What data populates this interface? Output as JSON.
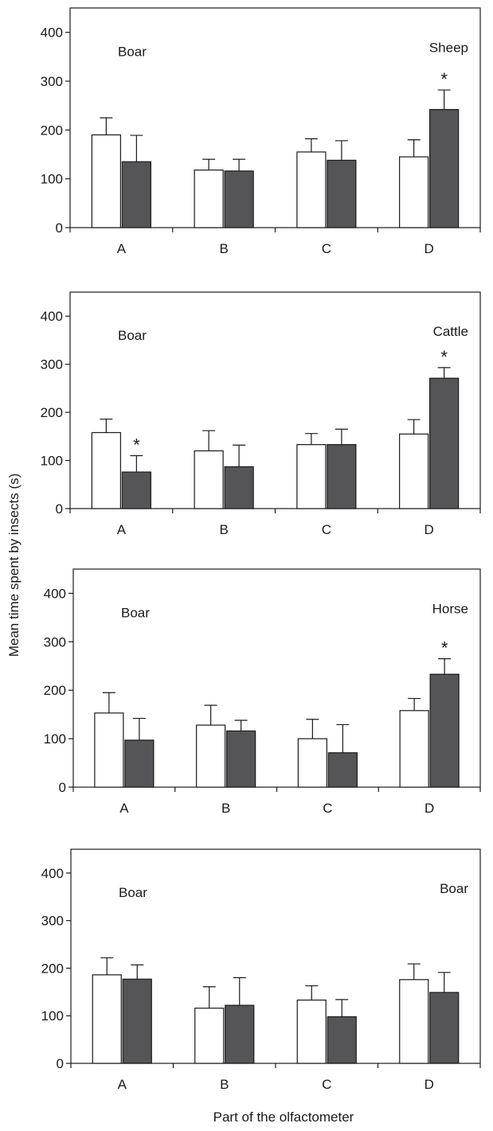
{
  "figure": {
    "ylabel": "Mean time spent by insects (s)",
    "xlabel": "Part of the olfactometer"
  },
  "colors": {
    "open_bar": "#ffffff",
    "filled_bar": "#555558",
    "axis": "#1a1a1a"
  },
  "chart_data": [
    {
      "type": "bar",
      "categories": [
        "A",
        "B",
        "C",
        "D"
      ],
      "ylim": [
        0,
        450
      ],
      "yticks": [
        0,
        100,
        200,
        300,
        400
      ],
      "left_label": "Boar",
      "right_label": "Sheep",
      "grid": false,
      "series": [
        {
          "name": "",
          "values": [
            190,
            118,
            155,
            145
          ],
          "errors": [
            35,
            22,
            27,
            35
          ],
          "significant": [
            false,
            false,
            false,
            false
          ]
        },
        {
          "name": "",
          "values": [
            135,
            116,
            138,
            242
          ],
          "errors": [
            54,
            24,
            40,
            40
          ],
          "significant": [
            false,
            false,
            false,
            true
          ]
        }
      ]
    },
    {
      "type": "bar",
      "categories": [
        "A",
        "B",
        "C",
        "D"
      ],
      "ylim": [
        0,
        450
      ],
      "yticks": [
        0,
        100,
        200,
        300,
        400
      ],
      "left_label": "Boar",
      "right_label": "Cattle",
      "grid": false,
      "series": [
        {
          "name": "",
          "values": [
            158,
            120,
            133,
            155
          ],
          "errors": [
            28,
            42,
            23,
            30
          ],
          "significant": [
            false,
            false,
            false,
            false
          ]
        },
        {
          "name": "",
          "values": [
            76,
            87,
            133,
            271
          ],
          "errors": [
            34,
            45,
            32,
            22
          ],
          "significant": [
            true,
            false,
            false,
            true
          ]
        }
      ]
    },
    {
      "type": "bar",
      "categories": [
        "A",
        "B",
        "C",
        "D"
      ],
      "ylim": [
        0,
        450
      ],
      "yticks": [
        0,
        100,
        200,
        300,
        400
      ],
      "left_label": "Boar",
      "right_label": "Horse",
      "grid": false,
      "series": [
        {
          "name": "",
          "values": [
            153,
            128,
            100,
            158
          ],
          "errors": [
            42,
            41,
            40,
            25
          ],
          "significant": [
            false,
            false,
            false,
            false
          ]
        },
        {
          "name": "",
          "values": [
            97,
            116,
            71,
            233
          ],
          "errors": [
            45,
            22,
            58,
            32
          ],
          "significant": [
            false,
            false,
            false,
            true
          ]
        }
      ]
    },
    {
      "type": "bar",
      "categories": [
        "A",
        "B",
        "C",
        "D"
      ],
      "ylim": [
        0,
        450
      ],
      "yticks": [
        0,
        100,
        200,
        300,
        400
      ],
      "left_label": "Boar",
      "right_label": "Boar",
      "grid": false,
      "series": [
        {
          "name": "",
          "values": [
            186,
            116,
            133,
            176
          ],
          "errors": [
            36,
            45,
            30,
            33
          ],
          "significant": [
            false,
            false,
            false,
            false
          ]
        },
        {
          "name": "",
          "values": [
            177,
            122,
            98,
            149
          ],
          "errors": [
            30,
            58,
            36,
            42
          ],
          "significant": [
            false,
            false,
            false,
            false
          ]
        }
      ]
    }
  ]
}
